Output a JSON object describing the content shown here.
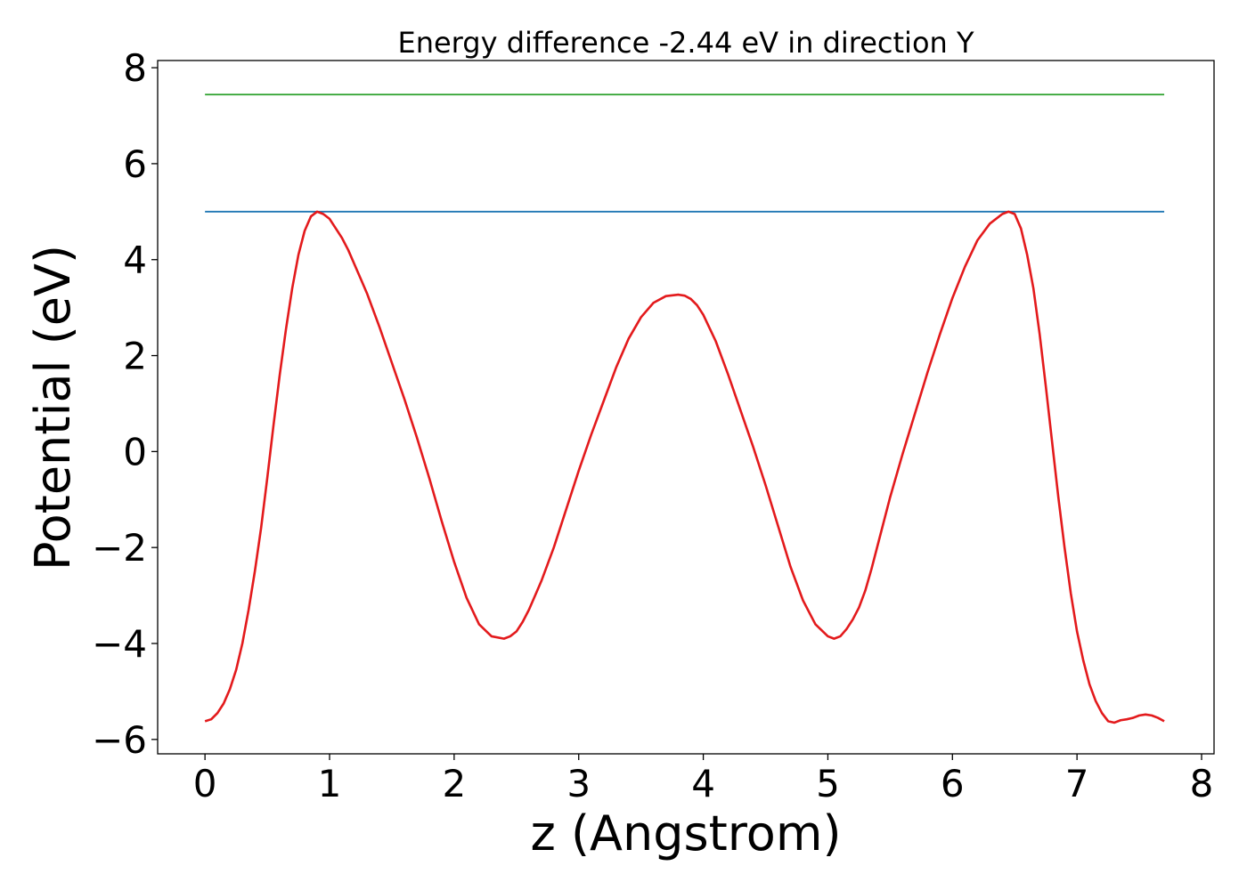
{
  "chart_data": {
    "type": "line",
    "title": "Energy difference -2.44 eV in direction Y",
    "xlabel": "z (Angstrom)",
    "ylabel": "Potential (eV)",
    "xlim": [
      -0.38,
      8.1
    ],
    "ylim": [
      -6.3,
      8.15
    ],
    "xticks": [
      0,
      1,
      2,
      3,
      4,
      5,
      6,
      7,
      8
    ],
    "xtick_labels": [
      "0",
      "1",
      "2",
      "3",
      "4",
      "5",
      "6",
      "7",
      "8"
    ],
    "yticks": [
      -6,
      -4,
      -2,
      0,
      2,
      4,
      6,
      8
    ],
    "ytick_labels": [
      "−6",
      "−4",
      "−2",
      "0",
      "2",
      "4",
      "6",
      "8"
    ],
    "grid": false,
    "legend": "none",
    "series": [
      {
        "color": "#2ca02c",
        "x": [
          0,
          7.7
        ],
        "y": [
          7.44,
          7.44
        ]
      },
      {
        "color": "#1f77b4",
        "x": [
          0,
          7.7
        ],
        "y": [
          5.0,
          5.0
        ]
      },
      {
        "color": "#e31a1c",
        "x": [
          0,
          0.05,
          0.1,
          0.15,
          0.2,
          0.25,
          0.3,
          0.35,
          0.4,
          0.45,
          0.5,
          0.55,
          0.6,
          0.65,
          0.7,
          0.75,
          0.8,
          0.85,
          0.9,
          0.95,
          1.0,
          1.05,
          1.1,
          1.15,
          1.2,
          1.25,
          1.3,
          1.4,
          1.5,
          1.6,
          1.7,
          1.8,
          1.9,
          2.0,
          2.1,
          2.2,
          2.3,
          2.4,
          2.45,
          2.5,
          2.55,
          2.6,
          2.65,
          2.7,
          2.75,
          2.8,
          2.9,
          3.0,
          3.1,
          3.2,
          3.3,
          3.4,
          3.5,
          3.6,
          3.7,
          3.8,
          3.85,
          3.9,
          3.95,
          4.0,
          4.1,
          4.2,
          4.3,
          4.4,
          4.5,
          4.6,
          4.7,
          4.8,
          4.9,
          5.0,
          5.05,
          5.1,
          5.15,
          5.2,
          5.25,
          5.3,
          5.35,
          5.4,
          5.5,
          5.6,
          5.7,
          5.8,
          5.9,
          6.0,
          6.1,
          6.2,
          6.3,
          6.4,
          6.45,
          6.5,
          6.55,
          6.6,
          6.65,
          6.7,
          6.75,
          6.8,
          6.85,
          6.9,
          6.95,
          7.0,
          7.05,
          7.1,
          7.15,
          7.2,
          7.25,
          7.3,
          7.35,
          7.4,
          7.45,
          7.5,
          7.55,
          7.6,
          7.65,
          7.7
        ],
        "y": [
          -5.62,
          -5.58,
          -5.45,
          -5.25,
          -4.95,
          -4.55,
          -4.0,
          -3.3,
          -2.5,
          -1.6,
          -0.55,
          0.55,
          1.6,
          2.55,
          3.4,
          4.1,
          4.6,
          4.9,
          5.0,
          4.95,
          4.85,
          4.65,
          4.45,
          4.2,
          3.9,
          3.6,
          3.3,
          2.6,
          1.85,
          1.1,
          0.3,
          -0.55,
          -1.45,
          -2.3,
          -3.05,
          -3.6,
          -3.85,
          -3.9,
          -3.85,
          -3.75,
          -3.55,
          -3.3,
          -3.0,
          -2.7,
          -2.35,
          -2.0,
          -1.2,
          -0.4,
          0.35,
          1.05,
          1.75,
          2.35,
          2.8,
          3.1,
          3.24,
          3.27,
          3.25,
          3.18,
          3.05,
          2.85,
          2.3,
          1.6,
          0.85,
          0.1,
          -0.7,
          -1.55,
          -2.4,
          -3.1,
          -3.6,
          -3.85,
          -3.9,
          -3.85,
          -3.7,
          -3.5,
          -3.25,
          -2.9,
          -2.45,
          -1.95,
          -0.95,
          -0.05,
          0.8,
          1.65,
          2.45,
          3.2,
          3.85,
          4.4,
          4.75,
          4.95,
          5.0,
          4.95,
          4.65,
          4.1,
          3.4,
          2.45,
          1.35,
          0.2,
          -0.95,
          -2.0,
          -2.95,
          -3.75,
          -4.35,
          -4.85,
          -5.2,
          -5.45,
          -5.62,
          -5.65,
          -5.6,
          -5.58,
          -5.55,
          -5.5,
          -5.48,
          -5.5,
          -5.55,
          -5.62
        ]
      }
    ]
  }
}
